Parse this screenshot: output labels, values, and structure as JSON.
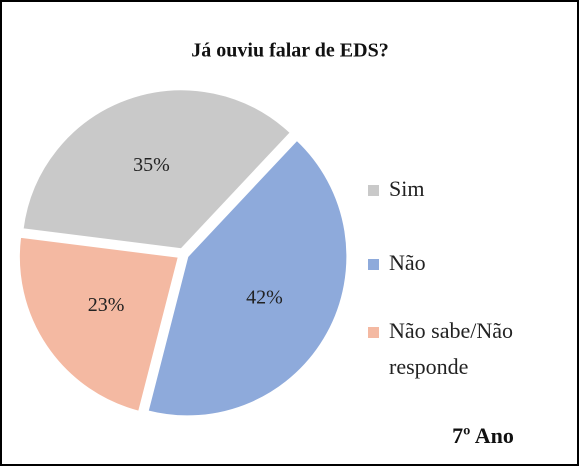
{
  "chart_data": {
    "type": "pie",
    "title": "Já ouviu falar de EDS?",
    "categories": [
      "Sim",
      "Não",
      "Não sabe/Não responde"
    ],
    "values": [
      35,
      42,
      23
    ],
    "value_labels": [
      "35%",
      "42%",
      "23%"
    ],
    "colors": [
      "#c9c9c9",
      "#8eaadb",
      "#f4b9a2"
    ],
    "annotation": "7º Ano",
    "legend": "right"
  }
}
